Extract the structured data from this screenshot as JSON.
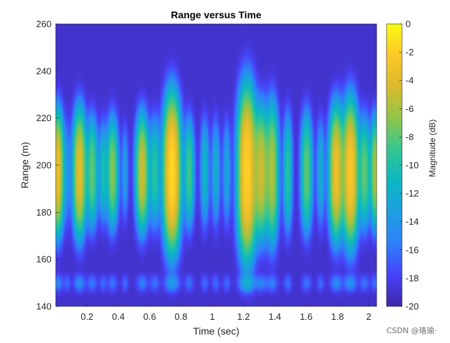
{
  "chart_data": {
    "type": "heatmap",
    "title": "Range versus Time",
    "xlabel": "Time (sec)",
    "ylabel": "Range (m)",
    "xlim": [
      0,
      2.05
    ],
    "ylim": [
      140,
      260
    ],
    "x_ticks": [
      {
        "value": 0.2,
        "label": "0.2"
      },
      {
        "value": 0.4,
        "label": "0.4"
      },
      {
        "value": 0.6,
        "label": "0.6"
      },
      {
        "value": 0.8,
        "label": "0.8"
      },
      {
        "value": 1.0,
        "label": "1"
      },
      {
        "value": 1.2,
        "label": "1.2"
      },
      {
        "value": 1.4,
        "label": "1.4"
      },
      {
        "value": 1.6,
        "label": "1.6"
      },
      {
        "value": 1.8,
        "label": "1.8"
      },
      {
        "value": 2.0,
        "label": "2"
      }
    ],
    "y_ticks": [
      {
        "value": 140,
        "label": "140"
      },
      {
        "value": 160,
        "label": "160"
      },
      {
        "value": 180,
        "label": "180"
      },
      {
        "value": 200,
        "label": "200"
      },
      {
        "value": 220,
        "label": "220"
      },
      {
        "value": 240,
        "label": "240"
      },
      {
        "value": 260,
        "label": "260"
      }
    ],
    "colorbar": {
      "label": "Magnitude (dB)",
      "range": [
        -20,
        0
      ],
      "ticks": [
        {
          "value": 0,
          "label": "0"
        },
        {
          "value": -2,
          "label": "-2"
        },
        {
          "value": -4,
          "label": "-4"
        },
        {
          "value": -6,
          "label": "-6"
        },
        {
          "value": -8,
          "label": "-8"
        },
        {
          "value": -10,
          "label": "-10"
        },
        {
          "value": -12,
          "label": "-12"
        },
        {
          "value": -14,
          "label": "-14"
        },
        {
          "value": -16,
          "label": "-16"
        },
        {
          "value": -18,
          "label": "-18"
        },
        {
          "value": -20,
          "label": "-20"
        }
      ],
      "colormap": "parula",
      "colormap_stops": [
        "#3e26a8",
        "#4743f8",
        "#2f80fa",
        "#1d9fe0",
        "#0bb8c2",
        "#35c690",
        "#8fc54a",
        "#dbba2e",
        "#fdc828",
        "#f9fb14"
      ]
    },
    "background_db": -19,
    "main_band_center_range_m": 197,
    "echo_center_range_m": 150,
    "pulses": [
      {
        "time": 0.01,
        "peak_db": -3.5,
        "halfwidth_range_m": 24,
        "width_sec": 0.02,
        "echo_db": -16.5
      },
      {
        "time": 0.07,
        "peak_db": -16,
        "halfwidth_range_m": 22,
        "width_sec": 0.015,
        "echo_db": -19
      },
      {
        "time": 0.15,
        "peak_db": -4,
        "halfwidth_range_m": 25,
        "width_sec": 0.022,
        "echo_db": -16
      },
      {
        "time": 0.23,
        "peak_db": -8,
        "halfwidth_range_m": 22,
        "width_sec": 0.02,
        "echo_db": -18
      },
      {
        "time": 0.3,
        "peak_db": -11,
        "halfwidth_range_m": 20,
        "width_sec": 0.015,
        "echo_db": -19
      },
      {
        "time": 0.36,
        "peak_db": -7,
        "halfwidth_range_m": 22,
        "width_sec": 0.02,
        "echo_db": -18.5
      },
      {
        "time": 0.44,
        "peak_db": -15,
        "halfwidth_range_m": 20,
        "width_sec": 0.013,
        "echo_db": -19
      },
      {
        "time": 0.55,
        "peak_db": -5,
        "halfwidth_range_m": 23,
        "width_sec": 0.022,
        "echo_db": -17.5
      },
      {
        "time": 0.63,
        "peak_db": -10,
        "halfwidth_range_m": 22,
        "width_sec": 0.02,
        "echo_db": -18.5
      },
      {
        "time": 0.74,
        "peak_db": -1.5,
        "halfwidth_range_m": 30,
        "width_sec": 0.028,
        "echo_db": -15
      },
      {
        "time": 0.85,
        "peak_db": -9,
        "halfwidth_range_m": 22,
        "width_sec": 0.018,
        "echo_db": -18.5
      },
      {
        "time": 0.95,
        "peak_db": -12,
        "halfwidth_range_m": 22,
        "width_sec": 0.016,
        "echo_db": -19
      },
      {
        "time": 1.02,
        "peak_db": -13,
        "halfwidth_range_m": 22,
        "width_sec": 0.016,
        "echo_db": -19
      },
      {
        "time": 1.09,
        "peak_db": -14,
        "halfwidth_range_m": 22,
        "width_sec": 0.015,
        "echo_db": -19
      },
      {
        "time": 1.22,
        "peak_db": -1.8,
        "halfwidth_range_m": 33,
        "width_sec": 0.03,
        "echo_db": -13
      },
      {
        "time": 1.31,
        "peak_db": -5,
        "halfwidth_range_m": 26,
        "width_sec": 0.025,
        "echo_db": -17
      },
      {
        "time": 1.38,
        "peak_db": -6,
        "halfwidth_range_m": 28,
        "width_sec": 0.022,
        "echo_db": -17.5
      },
      {
        "time": 1.48,
        "peak_db": -10,
        "halfwidth_range_m": 24,
        "width_sec": 0.016,
        "echo_db": -18.5
      },
      {
        "time": 1.6,
        "peak_db": -8,
        "halfwidth_range_m": 24,
        "width_sec": 0.02,
        "echo_db": -18.5
      },
      {
        "time": 1.69,
        "peak_db": -13,
        "halfwidth_range_m": 22,
        "width_sec": 0.015,
        "echo_db": -19
      },
      {
        "time": 1.79,
        "peak_db": -3.5,
        "halfwidth_range_m": 26,
        "width_sec": 0.024,
        "echo_db": -16.5
      },
      {
        "time": 1.88,
        "peak_db": -2.5,
        "halfwidth_range_m": 28,
        "width_sec": 0.026,
        "echo_db": -16
      },
      {
        "time": 1.97,
        "peak_db": -8,
        "halfwidth_range_m": 22,
        "width_sec": 0.02,
        "echo_db": -18.5
      },
      {
        "time": 2.04,
        "peak_db": -6,
        "halfwidth_range_m": 22,
        "width_sec": 0.018,
        "echo_db": -18.5
      }
    ]
  },
  "watermark": "CSDN @珞瑜·"
}
